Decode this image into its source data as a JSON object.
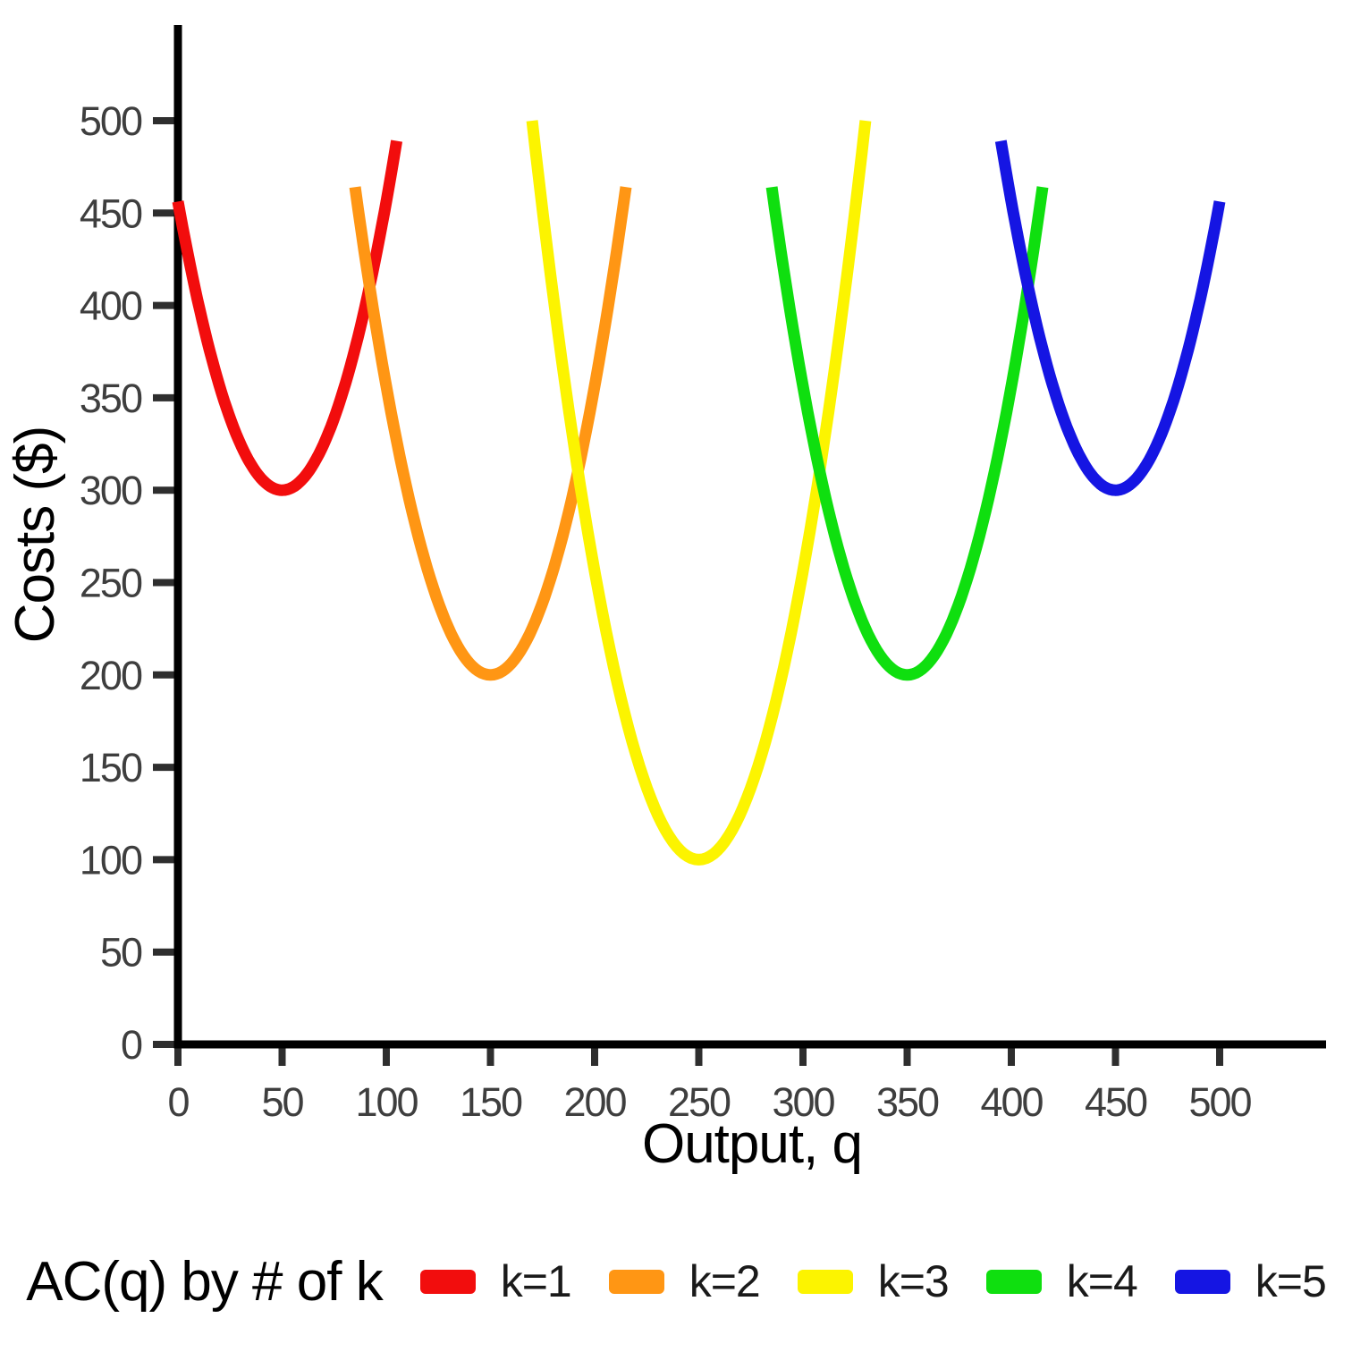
{
  "chart_data": {
    "type": "line",
    "title": "",
    "xlabel": "Output, q",
    "ylabel": "Costs ($)",
    "xlim": [
      0,
      550
    ],
    "ylim": [
      0,
      550
    ],
    "xticks": [
      0,
      50,
      100,
      150,
      200,
      250,
      300,
      350,
      400,
      450,
      500
    ],
    "yticks": [
      0,
      50,
      100,
      150,
      200,
      250,
      300,
      350,
      400,
      450,
      500
    ],
    "grid": false,
    "legend_title": "AC(q) by # of k",
    "legend_position": "bottom",
    "curve_model": "AC_k(q) = min_cost + a * (q - min_q)^2",
    "series": [
      {
        "name": "k=1",
        "color": "#F20D0D",
        "min_q": 50,
        "min_cost": 300,
        "a": 0.0625,
        "q_start": 0,
        "q_end": 105
      },
      {
        "name": "k=2",
        "color": "#FF9614",
        "min_q": 150,
        "min_cost": 200,
        "a": 0.0625,
        "q_start": 85,
        "q_end": 215
      },
      {
        "name": "k=3",
        "color": "#FCF400",
        "min_q": 250,
        "min_cost": 100,
        "a": 0.0625,
        "q_start": 170,
        "q_end": 330
      },
      {
        "name": "k=4",
        "color": "#0FDF0F",
        "min_q": 350,
        "min_cost": 200,
        "a": 0.0625,
        "q_start": 285,
        "q_end": 415
      },
      {
        "name": "k=5",
        "color": "#1515E3",
        "min_q": 450,
        "min_cost": 300,
        "a": 0.0625,
        "q_start": 395,
        "q_end": 500
      }
    ]
  },
  "colors": {
    "background": "#FFFFFF",
    "axis": "#000000",
    "tick": "#2E2E2E",
    "tick_label": "#3E3E3E",
    "axis_title": "#000000",
    "legend_text": "#1A1A1A"
  }
}
